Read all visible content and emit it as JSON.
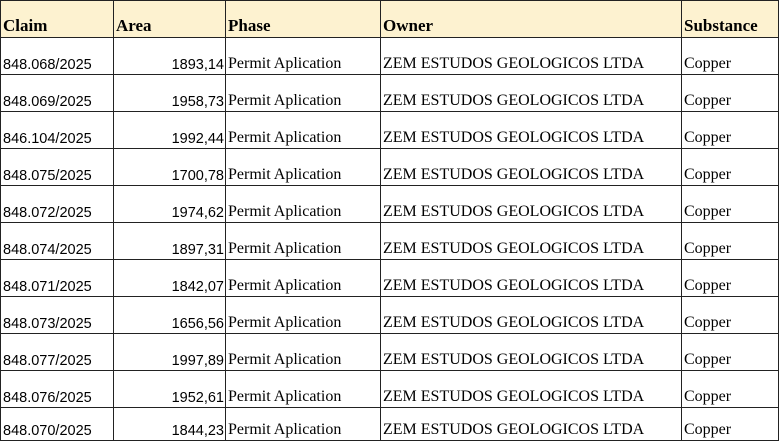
{
  "table": {
    "headers": [
      "Claim",
      "Area",
      "Phase",
      "Owner",
      "Substance"
    ],
    "header_bg": "#fdf2d0",
    "rows": [
      [
        "848.068/2025",
        "1893,14",
        "Permit Aplication",
        "ZEM ESTUDOS GEOLOGICOS LTDA",
        "Copper"
      ],
      [
        "848.069/2025",
        "1958,73",
        "Permit Aplication",
        "ZEM ESTUDOS GEOLOGICOS LTDA",
        "Copper"
      ],
      [
        "846.104/2025",
        "1992,44",
        "Permit Aplication",
        "ZEM ESTUDOS GEOLOGICOS LTDA",
        "Copper"
      ],
      [
        "848.075/2025",
        "1700,78",
        "Permit Aplication",
        "ZEM ESTUDOS GEOLOGICOS LTDA",
        "Copper"
      ],
      [
        "848.072/2025",
        "1974,62",
        "Permit Aplication",
        "ZEM ESTUDOS GEOLOGICOS LTDA",
        "Copper"
      ],
      [
        "848.074/2025",
        "1897,31",
        "Permit Aplication",
        "ZEM ESTUDOS GEOLOGICOS LTDA",
        "Copper"
      ],
      [
        "848.071/2025",
        "1842,07",
        "Permit Aplication",
        "ZEM ESTUDOS GEOLOGICOS LTDA",
        "Copper"
      ],
      [
        "848.073/2025",
        "1656,56",
        "Permit Aplication",
        "ZEM ESTUDOS GEOLOGICOS LTDA",
        "Copper"
      ],
      [
        "848.077/2025",
        "1997,89",
        "Permit Aplication",
        "ZEM ESTUDOS GEOLOGICOS LTDA",
        "Copper"
      ],
      [
        "848.076/2025",
        "1952,61",
        "Permit Aplication",
        "ZEM ESTUDOS GEOLOGICOS LTDA",
        "Copper"
      ],
      [
        "848.070/2025",
        "1844,23",
        "Permit Aplication",
        "ZEM ESTUDOS GEOLOGICOS LTDA",
        "Copper"
      ]
    ]
  }
}
